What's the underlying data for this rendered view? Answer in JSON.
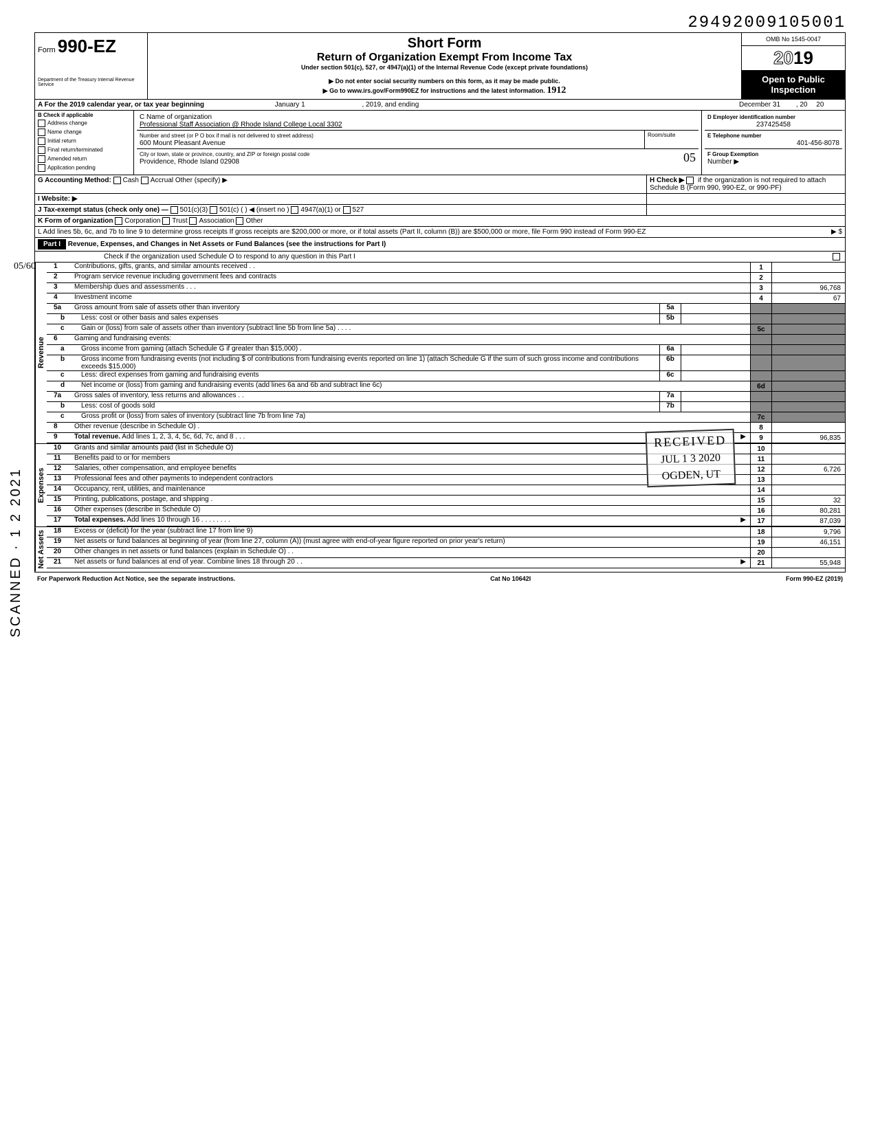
{
  "top_number": "29492009105001",
  "header": {
    "form_prefix": "Form",
    "form_number": "990-EZ",
    "dept": "Department of the Treasury\nInternal Revenue Service",
    "title1": "Short Form",
    "title2": "Return of Organization Exempt From Income Tax",
    "subtitle": "Under section 501(c), 527, or 4947(a)(1) of the Internal Revenue Code (except private foundations)",
    "note1": "▶ Do not enter social security numbers on this form, as it may be made public.",
    "note2": "▶ Go to www.irs.gov/Form990EZ for instructions and the latest information.",
    "omb": "OMB No 1545-0047",
    "year": "2019",
    "year_outline": "20",
    "inspect1": "Open to Public",
    "inspect2": "Inspection"
  },
  "rowA": {
    "label": "A For the 2019 calendar year, or tax year beginning",
    "mid": "January 1",
    "mid2": ", 2019, and ending",
    "end1": "December 31",
    "end2": ", 20",
    "end3": "20"
  },
  "rowB": {
    "label": "B Check if applicable",
    "items": [
      "Address change",
      "Name change",
      "Initial return",
      "Final return/terminated",
      "Amended return",
      "Application pending"
    ]
  },
  "rowC": {
    "label": "C Name of organization",
    "value": "Professional Staff Association @ Rhode Island College Local 3302",
    "addr_label": "Number and street (or P O  box if mail is not delivered to street address)",
    "addr": "600 Mount Pleasant Avenue",
    "room_label": "Room/suite",
    "city_label": "City or town, state or province, country, and ZIP or foreign postal code",
    "city": "Providence, Rhode Island 02908"
  },
  "rowD": {
    "label": "D Employer identification number",
    "value": "237425458"
  },
  "rowE": {
    "label": "E Telephone number",
    "value": "401-456-8078"
  },
  "rowF": {
    "label": "F Group Exemption",
    "label2": "Number ▶"
  },
  "rowG": {
    "label": "G Accounting Method:",
    "opts": [
      "Cash",
      "Accrual"
    ],
    "other": "Other (specify) ▶"
  },
  "rowH": {
    "label": "H Check ▶",
    "text": "if the organization is not required to attach Schedule B (Form 990, 990-EZ, or 990-PF)"
  },
  "rowI": {
    "label": "I Website: ▶"
  },
  "rowJ": {
    "label": "J Tax-exempt status (check only one) —",
    "opts": [
      "501(c)(3)",
      "501(c) (",
      "4947(a)(1) or",
      "527"
    ],
    "insert": ") ◀ (insert no )"
  },
  "rowK": {
    "label": "K Form of organization",
    "opts": [
      "Corporation",
      "Trust",
      "Association",
      "Other"
    ]
  },
  "rowL": {
    "text": "L Add lines 5b, 6c, and 7b to line 9 to determine gross receipts  If gross receipts are $200,000 or more, or if total assets (Part II, column (B)) are $500,000 or more, file Form 990 instead of Form 990-EZ",
    "arrow": "▶  $"
  },
  "part1": {
    "label": "Part I",
    "title": "Revenue, Expenses, and Changes in Net Assets or Fund Balances (see the instructions for Part I)",
    "check_text": "Check if the organization used Schedule O to respond to any question in this Part I"
  },
  "sections": {
    "revenue": "Revenue",
    "expenses": "Expenses",
    "netassets": "Net Assets"
  },
  "lines": [
    {
      "n": "1",
      "t": "Contributions, gifts, grants, and similar amounts received .   .",
      "box": "1",
      "v": ""
    },
    {
      "n": "2",
      "t": "Program service revenue including government fees and contracts",
      "box": "2",
      "v": ""
    },
    {
      "n": "3",
      "t": "Membership dues and assessments .    .    .",
      "box": "3",
      "v": "96,768"
    },
    {
      "n": "4",
      "t": "Investment income",
      "box": "4",
      "v": "67"
    },
    {
      "n": "5a",
      "t": "Gross amount from sale of assets other than inventory",
      "ibox": "5a"
    },
    {
      "n": "b",
      "t": "Less: cost or other basis and sales expenses",
      "ibox": "5b"
    },
    {
      "n": "c",
      "t": "Gain or (loss) from sale of assets other than inventory (subtract line 5b from line 5a)  .   .   .   .",
      "box": "5c",
      "shaded": true
    },
    {
      "n": "6",
      "t": "Gaming and fundraising events:"
    },
    {
      "n": "a",
      "t": "Gross income from gaming (attach Schedule G if greater than $15,000) .",
      "ibox": "6a"
    },
    {
      "n": "b",
      "t": "Gross income from fundraising events (not including  $                       of contributions from fundraising events reported on line 1) (attach Schedule G if the sum of such gross income and contributions exceeds $15,000)",
      "ibox": "6b"
    },
    {
      "n": "c",
      "t": "Less: direct expenses from gaming and fundraising events",
      "ibox": "6c"
    },
    {
      "n": "d",
      "t": "Net income or (loss) from gaming and fundraising events (add lines 6a and 6b and subtract line 6c)",
      "box": "6d",
      "shaded": true
    },
    {
      "n": "7a",
      "t": "Gross sales of inventory, less returns and allowances   .   .",
      "ibox": "7a"
    },
    {
      "n": "b",
      "t": "Less: cost of goods sold",
      "ibox": "7b"
    },
    {
      "n": "c",
      "t": "Gross profit or (loss) from sales of inventory (subtract line 7b from line 7a)",
      "box": "7c",
      "shaded": true
    },
    {
      "n": "8",
      "t": "Other revenue (describe in Schedule O) .",
      "box": "8",
      "v": ""
    },
    {
      "n": "9",
      "t": "Total revenue. Add lines 1, 2, 3, 4, 5c, 6d, 7c, and 8   .   .   .",
      "box": "9",
      "v": "96,835",
      "arrow": "▶",
      "bold": true
    }
  ],
  "exp_lines": [
    {
      "n": "10",
      "t": "Grants and similar amounts paid (list in Schedule O)",
      "box": "10",
      "v": ""
    },
    {
      "n": "11",
      "t": "Benefits paid to or for members",
      "box": "11",
      "v": ""
    },
    {
      "n": "12",
      "t": "Salaries, other compensation, and employee benefits",
      "box": "12",
      "v": "6,726"
    },
    {
      "n": "13",
      "t": "Professional fees and other payments to independent contractors",
      "box": "13",
      "v": ""
    },
    {
      "n": "14",
      "t": "Occupancy, rent, utilities, and maintenance",
      "box": "14",
      "v": ""
    },
    {
      "n": "15",
      "t": "Printing, publications, postage, and shipping .",
      "box": "15",
      "v": "32"
    },
    {
      "n": "16",
      "t": "Other expenses (describe in Schedule O)",
      "box": "16",
      "v": "80,281"
    },
    {
      "n": "17",
      "t": "Total expenses. Add lines 10 through 16  .   .   .   .   .   .   .   .",
      "box": "17",
      "v": "87,039",
      "arrow": "▶",
      "bold": true
    }
  ],
  "net_lines": [
    {
      "n": "18",
      "t": "Excess or (deficit) for the year (subtract line 17 from line 9)",
      "box": "18",
      "v": "9,796"
    },
    {
      "n": "19",
      "t": "Net assets or fund balances at beginning of year (from line 27, column (A)) (must agree with end-of-year figure reported on prior year's return)",
      "box": "19",
      "v": "46,151"
    },
    {
      "n": "20",
      "t": "Other changes in net assets or fund balances (explain in Schedule O) .   .",
      "box": "20",
      "v": ""
    },
    {
      "n": "21",
      "t": "Net assets or fund balances at end of year. Combine lines 18 through 20   .   .",
      "box": "21",
      "v": "55,948",
      "arrow": "▶"
    }
  ],
  "stamps": {
    "received": "RECEIVED",
    "date": "JUL 1 3 2020",
    "ogden": "OGDEN, UT"
  },
  "footer": {
    "left": "For Paperwork Reduction Act Notice, see the separate instructions.",
    "mid": "Cat No 10642I",
    "right": "Form 990-EZ (2019)"
  },
  "scanned": "SCANNED   ·  1 2 2021",
  "handwrite_05": "05/60",
  "handwrite_1912": "1912",
  "handwrite_o5": "05",
  "colors": {
    "black": "#000000",
    "shade": "#888888",
    "white": "#ffffff"
  }
}
